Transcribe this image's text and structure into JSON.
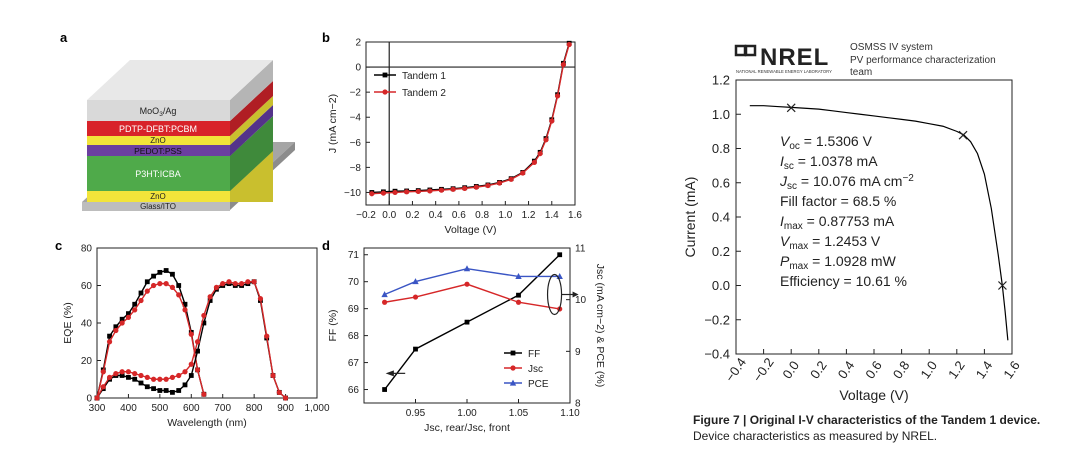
{
  "panel_letters": {
    "a": "a",
    "b": "b",
    "c": "c",
    "d": "d"
  },
  "device_stack": {
    "layers": [
      "MoO3/Ag",
      "PDTP-DFBT:PCBM",
      "ZnO",
      "PEDOT:PSS",
      "P3HT:ICBA",
      "ZnO",
      "Glass/ITO"
    ],
    "colors": {
      "moo3": "#d9d9d9",
      "pdtp": "#d8232a",
      "zno": "#f2e43a",
      "pedot": "#6b3fa0",
      "p3ht": "#4faa4a",
      "glass": "#bdbdbd"
    }
  },
  "nrel": {
    "logo": "NREL",
    "logo_sub": "NATIONAL RENEWABLE ENERGY LABORATORY",
    "line1": "OSMSS IV system",
    "line2": "PV performance characterization",
    "line3": "team"
  },
  "params": {
    "voc": {
      "sym": "V",
      "sub": "oc",
      "val": " = 1.5306 V"
    },
    "isc": {
      "sym": "I",
      "sub": "sc",
      "val": " = 1.0378 mA"
    },
    "jsc": {
      "sym": "J",
      "sub": "sc",
      "val": " = 10.076 mA cm",
      "sup": "−2"
    },
    "ff": "Fill factor = 68.5 %",
    "imax": {
      "sym": "I",
      "sub": "max",
      "val": " = 0.87753 mA"
    },
    "vmax": {
      "sym": "V",
      "sub": "max",
      "val": " = 1.2453 V"
    },
    "pmax": {
      "sym": "P",
      "sub": "max",
      "val": " = 1.0928 mW"
    },
    "eff": "Efficiency = 10.61 %"
  },
  "caption": {
    "bold": "Figure 7 | Original I-V characteristics of the Tandem 1 device.",
    "rest": " Device characteristics as measured by NREL."
  },
  "chart_data": [
    {
      "id": "b",
      "type": "line",
      "xlabel": "Voltage (V)",
      "ylabel": "J (mA cm−2)",
      "xlim": [
        -0.2,
        1.6
      ],
      "ylim": [
        -11,
        2
      ],
      "xticks": [
        "−0.2",
        "0.0",
        "0.2",
        "0.4",
        "0.6",
        "0.8",
        "1.0",
        "1.2",
        "1.4",
        "1.6"
      ],
      "yticks": [
        "2",
        "0",
        "−2",
        "−4",
        "−6",
        "−8",
        "−10"
      ],
      "legend": "top-left",
      "series": [
        {
          "name": "Tandem 1",
          "color": "#000000",
          "x": [
            -0.15,
            -0.05,
            0.05,
            0.15,
            0.25,
            0.35,
            0.45,
            0.55,
            0.65,
            0.75,
            0.85,
            0.95,
            1.05,
            1.15,
            1.25,
            1.3,
            1.35,
            1.4,
            1.45,
            1.5,
            1.55
          ],
          "y": [
            -10.0,
            -9.95,
            -9.9,
            -9.88,
            -9.85,
            -9.8,
            -9.75,
            -9.7,
            -9.62,
            -9.52,
            -9.4,
            -9.2,
            -8.9,
            -8.4,
            -7.5,
            -6.8,
            -5.7,
            -4.2,
            -2.2,
            0.3,
            1.9
          ]
        },
        {
          "name": "Tandem 2",
          "color": "#d62728",
          "x": [
            -0.15,
            -0.05,
            0.05,
            0.15,
            0.25,
            0.35,
            0.45,
            0.55,
            0.65,
            0.75,
            0.85,
            0.95,
            1.05,
            1.15,
            1.25,
            1.3,
            1.35,
            1.4,
            1.45,
            1.5,
            1.55
          ],
          "y": [
            -10.1,
            -10.05,
            -10.0,
            -9.95,
            -9.92,
            -9.88,
            -9.82,
            -9.75,
            -9.68,
            -9.58,
            -9.45,
            -9.25,
            -8.95,
            -8.45,
            -7.6,
            -6.9,
            -5.8,
            -4.3,
            -2.3,
            0.2,
            1.8
          ]
        }
      ]
    },
    {
      "id": "c",
      "type": "line",
      "xlabel": "Wavelength (nm)",
      "ylabel": "EQE (%)",
      "xlim": [
        300,
        1000
      ],
      "ylim": [
        0,
        80
      ],
      "xticks": [
        "300",
        "400",
        "500",
        "600",
        "700",
        "800",
        "900",
        "1,000"
      ],
      "yticks": [
        "0",
        "20",
        "40",
        "60",
        "80"
      ],
      "series": [
        {
          "color": "#000000",
          "x": [
            300,
            320,
            340,
            360,
            380,
            400,
            420,
            440,
            460,
            480,
            500,
            520,
            540,
            560,
            580,
            600,
            620,
            640
          ],
          "y": [
            0,
            15,
            33,
            38,
            42,
            45,
            50,
            56,
            62,
            65,
            67,
            68,
            66,
            60,
            50,
            35,
            15,
            2
          ]
        },
        {
          "color": "#d62728",
          "x": [
            300,
            320,
            340,
            360,
            380,
            400,
            420,
            440,
            460,
            480,
            500,
            520,
            540,
            560,
            580,
            600,
            620,
            640
          ],
          "y": [
            0,
            14,
            30,
            36,
            40,
            43,
            47,
            52,
            57,
            60,
            61,
            61,
            59,
            55,
            47,
            34,
            15,
            2
          ]
        },
        {
          "color": "#000000",
          "x": [
            300,
            320,
            340,
            360,
            380,
            400,
            420,
            440,
            460,
            480,
            500,
            520,
            540,
            560,
            580,
            600,
            620,
            640,
            660,
            680,
            700,
            720,
            740,
            760,
            780,
            800,
            820,
            840,
            860,
            880,
            900
          ],
          "y": [
            0,
            5,
            10,
            12,
            12,
            11,
            10,
            8,
            6,
            5,
            4,
            4,
            3,
            4,
            7,
            12,
            25,
            40,
            52,
            58,
            60,
            61,
            60,
            60,
            61,
            62,
            52,
            32,
            12,
            3,
            0
          ]
        },
        {
          "color": "#d62728",
          "x": [
            300,
            320,
            340,
            360,
            380,
            400,
            420,
            440,
            460,
            480,
            500,
            520,
            540,
            560,
            580,
            600,
            620,
            640,
            660,
            680,
            700,
            720,
            740,
            760,
            780,
            800,
            820,
            840,
            860,
            880,
            900
          ],
          "y": [
            0,
            6,
            11,
            13,
            14,
            14,
            13,
            12,
            11,
            10,
            10,
            10,
            11,
            12,
            14,
            18,
            30,
            44,
            54,
            59,
            61,
            62,
            61,
            61,
            62,
            62,
            53,
            33,
            12,
            3,
            0
          ]
        }
      ]
    },
    {
      "id": "d",
      "type": "line",
      "xlabel": "Jsc, rear/Jsc, front",
      "ylabel": "FF (%)",
      "y2label": "Jsc (mA cm−2) & PCE (%)",
      "xlim": [
        0.9,
        1.1
      ],
      "ylim": [
        65.5,
        71.25
      ],
      "y2lim": [
        8,
        11
      ],
      "xticks": [
        "0.95",
        "1.00",
        "1.05",
        "1.10"
      ],
      "yticks": [
        "66",
        "67",
        "68",
        "69",
        "70",
        "71"
      ],
      "y2ticks": [
        "8",
        "9",
        "10",
        "11"
      ],
      "legend": "bottom-right",
      "series": [
        {
          "name": "FF",
          "color": "#000000",
          "axis": "left",
          "marker": "square",
          "x": [
            0.92,
            0.95,
            1.0,
            1.05,
            1.09
          ],
          "y": [
            66.0,
            67.5,
            68.5,
            69.5,
            71.0
          ]
        },
        {
          "name": "Jsc",
          "color": "#d62728",
          "axis": "right",
          "marker": "circle",
          "x": [
            0.92,
            0.95,
            1.0,
            1.05,
            1.09
          ],
          "y": [
            9.95,
            10.05,
            10.3,
            9.95,
            9.82
          ]
        },
        {
          "name": "PCE",
          "color": "#3a55c4",
          "axis": "right",
          "marker": "triangle",
          "x": [
            0.92,
            0.95,
            1.0,
            1.05,
            1.09
          ],
          "y": [
            10.1,
            10.35,
            10.6,
            10.45,
            10.45
          ]
        }
      ]
    },
    {
      "id": "nrel",
      "type": "line",
      "xlabel": "Voltage (V)",
      "ylabel": "Current (mA)",
      "xlim": [
        -0.4,
        1.6
      ],
      "ylim": [
        -0.4,
        1.2
      ],
      "xticks": [
        "−0.4",
        "−0.2",
        "0.0",
        "0.2",
        "0.4",
        "0.6",
        "0.8",
        "1.0",
        "1.2",
        "1.4",
        "1.6"
      ],
      "yticks": [
        "1.2",
        "1.0",
        "0.8",
        "0.6",
        "0.4",
        "0.2",
        "0.0",
        "−0.2",
        "−0.4"
      ],
      "series": [
        {
          "color": "#000000",
          "x": [
            -0.3,
            -0.2,
            -0.1,
            0.0,
            0.1,
            0.2,
            0.3,
            0.4,
            0.5,
            0.6,
            0.7,
            0.8,
            0.9,
            1.0,
            1.1,
            1.2,
            1.25,
            1.3,
            1.35,
            1.4,
            1.45,
            1.5,
            1.53,
            1.55,
            1.57
          ],
          "y": [
            1.05,
            1.05,
            1.045,
            1.04,
            1.035,
            1.03,
            1.02,
            1.01,
            1.0,
            0.99,
            0.98,
            0.97,
            0.96,
            0.945,
            0.93,
            0.9,
            0.88,
            0.84,
            0.77,
            0.65,
            0.45,
            0.18,
            0.0,
            -0.15,
            -0.32
          ]
        }
      ],
      "markers": {
        "x": [
          0.0,
          1.2453,
          1.5306
        ],
        "y": [
          1.0378,
          0.87753,
          0.0
        ]
      }
    }
  ]
}
